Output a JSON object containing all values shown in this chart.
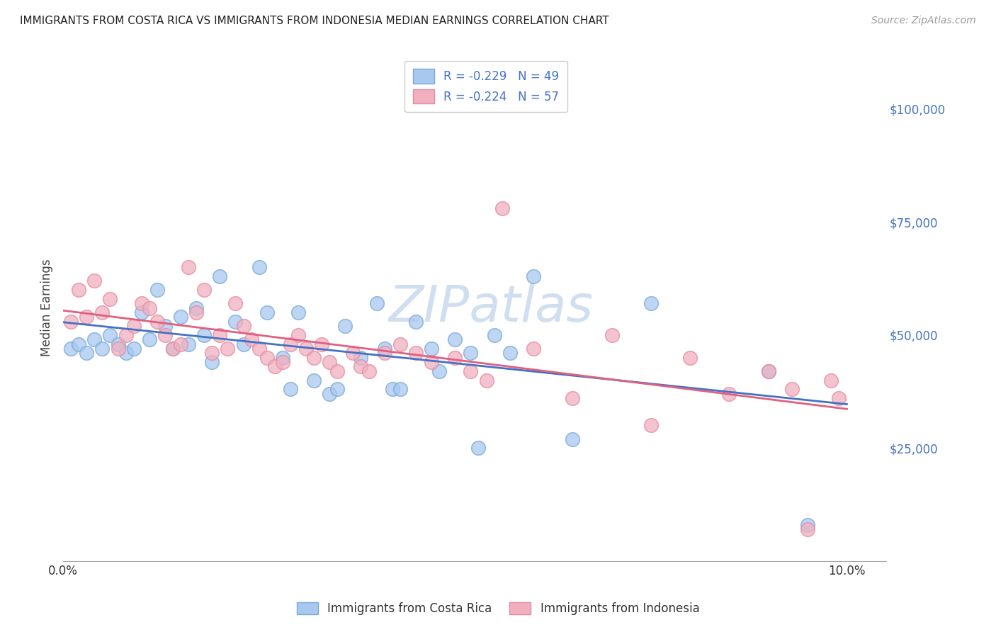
{
  "title": "IMMIGRANTS FROM COSTA RICA VS IMMIGRANTS FROM INDONESIA MEDIAN EARNINGS CORRELATION CHART",
  "source": "Source: ZipAtlas.com",
  "ylabel": "Median Earnings",
  "x_ticks": [
    0.0,
    0.02,
    0.04,
    0.06,
    0.08,
    0.1
  ],
  "x_tick_labels": [
    "0.0%",
    "",
    "",
    "",
    "",
    "10.0%"
  ],
  "y_ticks": [
    0,
    25000,
    50000,
    75000,
    100000
  ],
  "y_tick_labels": [
    "",
    "$25,000",
    "$50,000",
    "$75,000",
    "$100,000"
  ],
  "xlim": [
    0.0,
    0.105
  ],
  "ylim": [
    0,
    112000
  ],
  "legend_labels": [
    "R = -0.229   N = 49",
    "R = -0.224   N = 57"
  ],
  "series_labels": [
    "Immigrants from Costa Rica",
    "Immigrants from Indonesia"
  ],
  "blue_color": "#A8C8F0",
  "pink_color": "#F0B0C0",
  "blue_edge_color": "#7AAAD8",
  "pink_edge_color": "#E88AA0",
  "blue_line_color": "#4472C4",
  "pink_line_color": "#E06080",
  "watermark": "ZIPatlas",
  "watermark_color": "#D0DFF0",
  "costa_rica_x": [
    0.001,
    0.002,
    0.003,
    0.004,
    0.005,
    0.006,
    0.007,
    0.008,
    0.009,
    0.01,
    0.011,
    0.012,
    0.013,
    0.014,
    0.015,
    0.016,
    0.017,
    0.018,
    0.019,
    0.02,
    0.022,
    0.023,
    0.025,
    0.026,
    0.028,
    0.029,
    0.03,
    0.032,
    0.034,
    0.035,
    0.036,
    0.038,
    0.04,
    0.041,
    0.042,
    0.043,
    0.045,
    0.047,
    0.048,
    0.05,
    0.052,
    0.053,
    0.055,
    0.057,
    0.06,
    0.065,
    0.075,
    0.09,
    0.095
  ],
  "costa_rica_y": [
    47000,
    48000,
    46000,
    49000,
    47000,
    50000,
    48000,
    46000,
    47000,
    55000,
    49000,
    60000,
    52000,
    47000,
    54000,
    48000,
    56000,
    50000,
    44000,
    63000,
    53000,
    48000,
    65000,
    55000,
    45000,
    38000,
    55000,
    40000,
    37000,
    38000,
    52000,
    45000,
    57000,
    47000,
    38000,
    38000,
    53000,
    47000,
    42000,
    49000,
    46000,
    25000,
    50000,
    46000,
    63000,
    27000,
    57000,
    42000,
    8000
  ],
  "indonesia_x": [
    0.001,
    0.002,
    0.003,
    0.004,
    0.005,
    0.006,
    0.007,
    0.008,
    0.009,
    0.01,
    0.011,
    0.012,
    0.013,
    0.014,
    0.015,
    0.016,
    0.017,
    0.018,
    0.019,
    0.02,
    0.021,
    0.022,
    0.023,
    0.024,
    0.025,
    0.026,
    0.027,
    0.028,
    0.029,
    0.03,
    0.031,
    0.032,
    0.033,
    0.034,
    0.035,
    0.037,
    0.038,
    0.039,
    0.041,
    0.043,
    0.045,
    0.047,
    0.05,
    0.052,
    0.054,
    0.056,
    0.06,
    0.065,
    0.07,
    0.075,
    0.08,
    0.085,
    0.09,
    0.093,
    0.095,
    0.098,
    0.099
  ],
  "indonesia_y": [
    53000,
    60000,
    54000,
    62000,
    55000,
    58000,
    47000,
    50000,
    52000,
    57000,
    56000,
    53000,
    50000,
    47000,
    48000,
    65000,
    55000,
    60000,
    46000,
    50000,
    47000,
    57000,
    52000,
    49000,
    47000,
    45000,
    43000,
    44000,
    48000,
    50000,
    47000,
    45000,
    48000,
    44000,
    42000,
    46000,
    43000,
    42000,
    46000,
    48000,
    46000,
    44000,
    45000,
    42000,
    40000,
    78000,
    47000,
    36000,
    50000,
    30000,
    45000,
    37000,
    42000,
    38000,
    7000,
    40000,
    36000
  ]
}
